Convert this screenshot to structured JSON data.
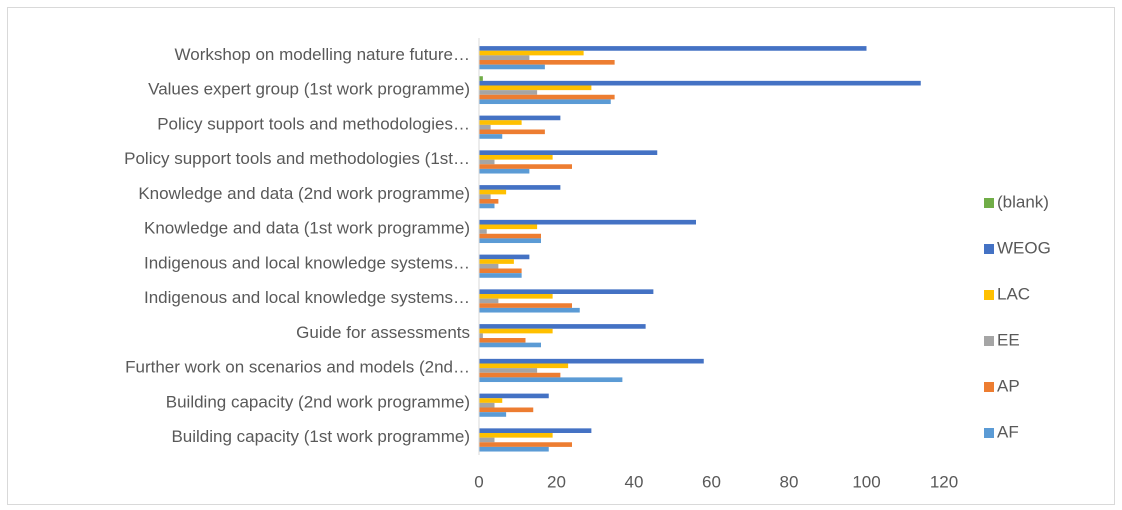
{
  "chart_data": {
    "type": "hbar",
    "categories": [
      "Building capacity (1st work programme)",
      "Building capacity (2nd work programme)",
      "Further work on scenarios and models (2nd…",
      "Guide for assessments",
      "Indigenous and local knowledge systems…",
      "Indigenous and local knowledge systems…",
      "Knowledge and data (1st work programme)",
      "Knowledge and data (2nd work programme)",
      "Policy support tools and methodologies (1st…",
      "Policy support tools and methodologies…",
      "Values expert group (1st work programme)",
      "Workshop on modelling nature future…"
    ],
    "series": [
      {
        "name": "(blank)",
        "color": "#70ad47",
        "values": [
          null,
          null,
          null,
          null,
          null,
          null,
          null,
          null,
          null,
          null,
          1,
          null
        ]
      },
      {
        "name": "WEOG",
        "color": "#4472c4",
        "values": [
          29,
          18,
          58,
          43,
          45,
          13,
          56,
          21,
          46,
          21,
          114,
          100
        ]
      },
      {
        "name": "LAC",
        "color": "#ffc000",
        "values": [
          19,
          6,
          23,
          19,
          19,
          9,
          15,
          7,
          19,
          11,
          29,
          27
        ]
      },
      {
        "name": "EE",
        "color": "#a5a5a5",
        "values": [
          4,
          4,
          15,
          1,
          5,
          5,
          2,
          3,
          4,
          3,
          15,
          13
        ]
      },
      {
        "name": "AP",
        "color": "#ed7d31",
        "values": [
          24,
          14,
          21,
          12,
          24,
          11,
          16,
          5,
          24,
          17,
          35,
          35
        ]
      },
      {
        "name": "AF",
        "color": "#5b9bd5",
        "values": [
          18,
          7,
          37,
          16,
          26,
          11,
          16,
          4,
          13,
          6,
          34,
          17
        ]
      }
    ],
    "xlim": [
      0,
      120
    ],
    "xticks": [
      0,
      20,
      40,
      60,
      80,
      100,
      120
    ],
    "grid": false,
    "legend": "right"
  }
}
